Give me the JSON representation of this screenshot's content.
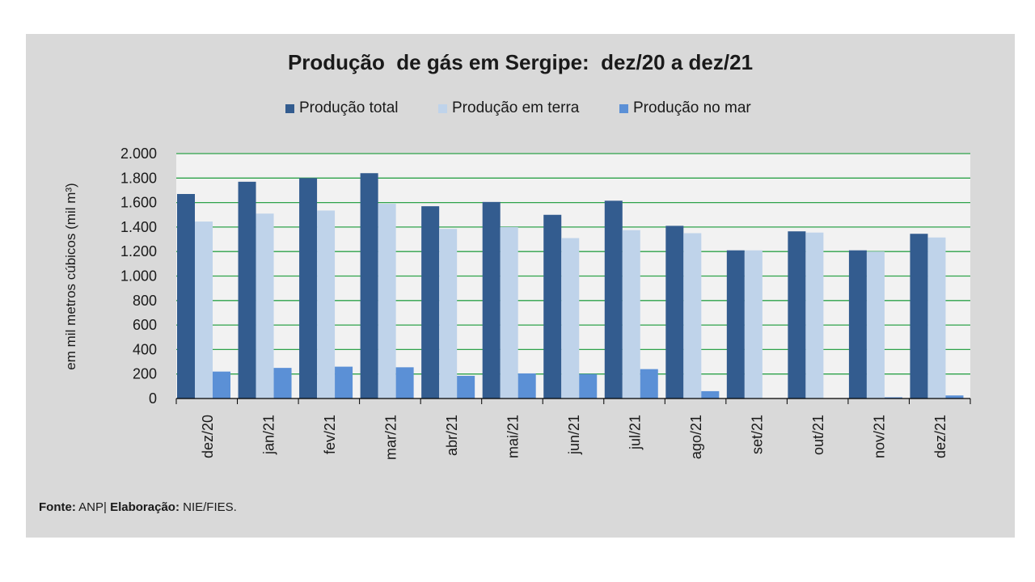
{
  "chart_data": {
    "type": "bar",
    "title": "Produção  de gás em Sergipe:  dez/20 a dez/21",
    "xlabel": "",
    "ylabel": "em mil metros cúbicos (mil m³)",
    "categories": [
      "dez/20",
      "jan/21",
      "fev/21",
      "mar/21",
      "abr/21",
      "mai/21",
      "jun/21",
      "jul/21",
      "ago/21",
      "set/21",
      "out/21",
      "nov/21",
      "dez/21"
    ],
    "series": [
      {
        "name": "Produção total",
        "color": "#335c8f",
        "values": [
          1670,
          1770,
          1800,
          1840,
          1570,
          1605,
          1500,
          1615,
          1410,
          1210,
          1365,
          1210,
          1345
        ]
      },
      {
        "name": "Produção em terra",
        "color": "#bfd3ea",
        "values": [
          1445,
          1510,
          1535,
          1590,
          1385,
          1400,
          1310,
          1375,
          1350,
          1210,
          1355,
          1200,
          1315
        ]
      },
      {
        "name": "Produção no mar",
        "color": "#5b90d6",
        "values": [
          220,
          250,
          260,
          255,
          185,
          205,
          200,
          240,
          60,
          0,
          0,
          10,
          25
        ]
      }
    ],
    "ylim": [
      0,
      2000
    ],
    "yticks": [
      0,
      200,
      400,
      600,
      800,
      1000,
      1200,
      1400,
      1600,
      1800,
      2000
    ],
    "ytick_labels": [
      "0",
      "200",
      "400",
      "600",
      "800",
      "1.000",
      "1.200",
      "1.400",
      "1.600",
      "1.800",
      "2.000"
    ],
    "grid": true,
    "legend_position": "top-center"
  },
  "footer": {
    "source_label": "Fonte:",
    "source_value": " ANP| ",
    "elab_label": "Elaboração:",
    "elab_value": " NIE/FIES."
  }
}
